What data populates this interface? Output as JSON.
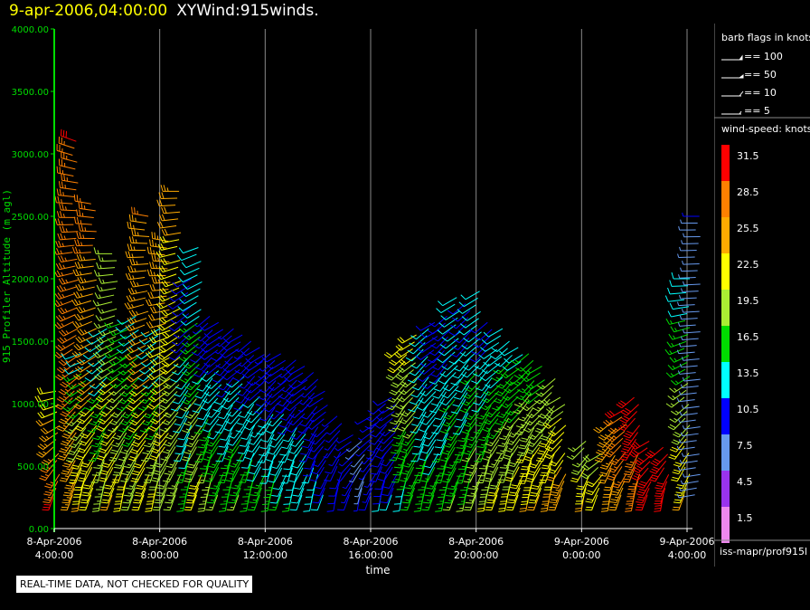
{
  "header": {
    "timestamp": "9-apr-2006,04:00:00",
    "product": "XYWind:915winds."
  },
  "notice": "REAL-TIME DATA, NOT CHECKED FOR QUALITY",
  "footer_id": "iss-mapr/prof915l",
  "barb_legend": {
    "title": "barb flags in knots",
    "items": [
      "== 100",
      "== 50",
      "== 10",
      "== 5"
    ]
  },
  "speed_legend": {
    "title": "wind-speed: knots",
    "bins": [
      {
        "label": "31.5",
        "color": "#ff0000"
      },
      {
        "label": "28.5",
        "color": "#ff8000"
      },
      {
        "label": "25.5",
        "color": "#ffaa00"
      },
      {
        "label": "22.5",
        "color": "#ffff00"
      },
      {
        "label": "19.5",
        "color": "#aaee33"
      },
      {
        "label": "16.5",
        "color": "#00dd00"
      },
      {
        "label": "13.5",
        "color": "#00ffff"
      },
      {
        "label": "10.5",
        "color": "#0000ff"
      },
      {
        "label": "7.5",
        "color": "#6699ee"
      },
      {
        "label": "4.5",
        "color": "#9933ee"
      },
      {
        "label": "1.5",
        "color": "#ee88ee"
      }
    ]
  },
  "chart_data": {
    "type": "scatter",
    "ylabel": "915 Profiler Altitude (m agl)",
    "xlabel": "time",
    "ylim": [
      0,
      4000
    ],
    "yticks": [
      "0.00",
      "500.00",
      "1000.00",
      "1500.00",
      "2000.00",
      "2500.00",
      "3000.00",
      "3500.00",
      "4000.00"
    ],
    "xlim_hours": [
      0,
      24
    ],
    "xticks": [
      {
        "hour": 0,
        "date": "8-Apr-2006",
        "time": "4:00:00"
      },
      {
        "hour": 4,
        "date": "8-Apr-2006",
        "time": "8:00:00"
      },
      {
        "hour": 8,
        "date": "8-Apr-2006",
        "time": "12:00:00"
      },
      {
        "hour": 12,
        "date": "8-Apr-2006",
        "time": "16:00:00"
      },
      {
        "hour": 16,
        "date": "8-Apr-2006",
        "time": "20:00:00"
      },
      {
        "hour": 20,
        "date": "9-Apr-2006",
        "time": "0:00:00"
      },
      {
        "hour": 24,
        "date": "9-Apr-2006",
        "time": "4:00:00"
      }
    ],
    "grid": "vertical",
    "profiles": [
      {
        "h": 0.1,
        "top": 1100,
        "w0": 30,
        "w1": 22,
        "d0": 200,
        "d1": 260
      },
      {
        "h": 0.8,
        "top": 3100,
        "w0": 26,
        "w1": 30,
        "d0": 200,
        "d1": 290
      },
      {
        "h": 1.1,
        "top": 1400,
        "w0": 24,
        "w1": 14,
        "d0": 190,
        "d1": 250
      },
      {
        "h": 1.5,
        "top": 2600,
        "w0": 22,
        "w1": 28,
        "d0": 200,
        "d1": 280
      },
      {
        "h": 1.9,
        "top": 1600,
        "w0": 20,
        "w1": 12,
        "d0": 190,
        "d1": 240
      },
      {
        "h": 2.3,
        "top": 2200,
        "w0": 24,
        "w1": 18,
        "d0": 200,
        "d1": 270
      },
      {
        "h": 2.7,
        "top": 1650,
        "w0": 22,
        "w1": 16,
        "d0": 190,
        "d1": 250
      },
      {
        "h": 3.1,
        "top": 1700,
        "w0": 20,
        "w1": 14,
        "d0": 200,
        "d1": 240
      },
      {
        "h": 3.5,
        "top": 2500,
        "w0": 22,
        "w1": 27,
        "d0": 200,
        "d1": 280
      },
      {
        "h": 3.9,
        "top": 1600,
        "w0": 22,
        "w1": 12,
        "d0": 190,
        "d1": 240
      },
      {
        "h": 4.3,
        "top": 2300,
        "w0": 20,
        "w1": 26,
        "d0": 200,
        "d1": 280
      },
      {
        "h": 4.7,
        "top": 2700,
        "w0": 18,
        "w1": 25,
        "d0": 200,
        "d1": 270
      },
      {
        "h": 5.1,
        "top": 2000,
        "w0": 16,
        "w1": 10,
        "d0": 190,
        "d1": 240
      },
      {
        "h": 5.5,
        "top": 2250,
        "w0": 22,
        "w1": 12,
        "d0": 200,
        "d1": 250
      },
      {
        "h": 5.9,
        "top": 1700,
        "w0": 20,
        "w1": 9,
        "d0": 190,
        "d1": 230
      },
      {
        "h": 6.3,
        "top": 1650,
        "w0": 18,
        "w1": 10,
        "d0": 200,
        "d1": 240
      },
      {
        "h": 6.7,
        "top": 1600,
        "w0": 17,
        "w1": 9,
        "d0": 190,
        "d1": 230
      },
      {
        "h": 7.1,
        "top": 1550,
        "w0": 18,
        "w1": 10,
        "d0": 200,
        "d1": 240
      },
      {
        "h": 7.5,
        "top": 1500,
        "w0": 17,
        "w1": 9,
        "d0": 190,
        "d1": 230
      },
      {
        "h": 7.9,
        "top": 1450,
        "w0": 16,
        "w1": 10,
        "d0": 200,
        "d1": 240
      },
      {
        "h": 8.3,
        "top": 1400,
        "w0": 16,
        "w1": 9,
        "d0": 190,
        "d1": 230
      },
      {
        "h": 8.7,
        "top": 1400,
        "w0": 15,
        "w1": 10,
        "d0": 200,
        "d1": 240
      },
      {
        "h": 9.1,
        "top": 1350,
        "w0": 15,
        "w1": 9,
        "d0": 190,
        "d1": 230
      },
      {
        "h": 9.5,
        "top": 1300,
        "w0": 14,
        "w1": 10,
        "d0": 200,
        "d1": 240
      },
      {
        "h": 9.9,
        "top": 1250,
        "w0": 13,
        "w1": 9,
        "d0": 190,
        "d1": 230
      },
      {
        "h": 10.3,
        "top": 1100,
        "w0": 12,
        "w1": 9,
        "d0": 200,
        "d1": 240
      },
      {
        "h": 10.8,
        "top": 900,
        "w0": 11,
        "w1": 9,
        "d0": 190,
        "d1": 230
      },
      {
        "h": 11.3,
        "top": 750,
        "w0": 10,
        "w1": 9,
        "d0": 200,
        "d1": 240
      },
      {
        "h": 11.7,
        "top": 700,
        "w0": 9,
        "w1": 8,
        "d0": 190,
        "d1": 230
      },
      {
        "h": 12.1,
        "top": 900,
        "w0": 10,
        "w1": 9,
        "d0": 200,
        "d1": 240
      },
      {
        "h": 12.5,
        "top": 1000,
        "w0": 12,
        "w1": 10,
        "d0": 190,
        "d1": 230
      },
      {
        "h": 12.9,
        "top": 1050,
        "w0": 12,
        "w1": 10,
        "d0": 200,
        "d1": 240
      },
      {
        "h": 13.3,
        "top": 1450,
        "w0": 14,
        "w1": 22,
        "d0": 190,
        "d1": 230
      },
      {
        "h": 13.7,
        "top": 1550,
        "w0": 15,
        "w1": 22,
        "d0": 200,
        "d1": 240
      },
      {
        "h": 14.1,
        "top": 1600,
        "w0": 16,
        "w1": 12,
        "d0": 190,
        "d1": 230
      },
      {
        "h": 14.5,
        "top": 1650,
        "w0": 16,
        "w1": 10,
        "d0": 200,
        "d1": 240
      },
      {
        "h": 14.9,
        "top": 1700,
        "w0": 17,
        "w1": 10,
        "d0": 190,
        "d1": 230
      },
      {
        "h": 15.3,
        "top": 1850,
        "w0": 18,
        "w1": 12,
        "d0": 200,
        "d1": 240
      },
      {
        "h": 15.7,
        "top": 1800,
        "w0": 18,
        "w1": 10,
        "d0": 190,
        "d1": 230
      },
      {
        "h": 16.1,
        "top": 1900,
        "w0": 20,
        "w1": 12,
        "d0": 200,
        "d1": 240
      },
      {
        "h": 16.5,
        "top": 1650,
        "w0": 21,
        "w1": 10,
        "d0": 190,
        "d1": 230
      },
      {
        "h": 16.9,
        "top": 1600,
        "w0": 22,
        "w1": 12,
        "d0": 200,
        "d1": 240
      },
      {
        "h": 17.3,
        "top": 1500,
        "w0": 22,
        "w1": 14,
        "d0": 190,
        "d1": 230
      },
      {
        "h": 17.7,
        "top": 1450,
        "w0": 23,
        "w1": 14,
        "d0": 200,
        "d1": 240
      },
      {
        "h": 18.1,
        "top": 1400,
        "w0": 24,
        "w1": 16,
        "d0": 190,
        "d1": 230
      },
      {
        "h": 18.5,
        "top": 1300,
        "w0": 24,
        "w1": 16,
        "d0": 200,
        "d1": 240
      },
      {
        "h": 18.9,
        "top": 1200,
        "w0": 25,
        "w1": 18,
        "d0": 190,
        "d1": 230
      },
      {
        "h": 19.3,
        "top": 1050,
        "w0": 26,
        "w1": 20,
        "d0": 200,
        "d1": 240
      },
      {
        "h": 20.2,
        "top": 700,
        "w0": 24,
        "w1": 18,
        "d0": 190,
        "d1": 230
      },
      {
        "h": 20.7,
        "top": 600,
        "w0": 22,
        "w1": 20,
        "d0": 200,
        "d1": 240
      },
      {
        "h": 21.2,
        "top": 850,
        "w0": 24,
        "w1": 26,
        "d0": 190,
        "d1": 230
      },
      {
        "h": 21.6,
        "top": 950,
        "w0": 26,
        "w1": 30,
        "d0": 200,
        "d1": 240
      },
      {
        "h": 22.1,
        "top": 1050,
        "w0": 28,
        "w1": 32,
        "d0": 190,
        "d1": 230
      },
      {
        "h": 22.6,
        "top": 700,
        "w0": 30,
        "w1": 32,
        "d0": 200,
        "d1": 240
      },
      {
        "h": 23.2,
        "top": 650,
        "w0": 30,
        "w1": 32,
        "d0": 190,
        "d1": 230
      },
      {
        "h": 24.0,
        "top": 2000,
        "w0": 24,
        "w1": 13,
        "d0": 200,
        "d1": 270
      },
      {
        "h": 24.4,
        "top": 2500,
        "w0": 8,
        "w1": 9,
        "d0": 260,
        "d1": 270
      }
    ]
  }
}
